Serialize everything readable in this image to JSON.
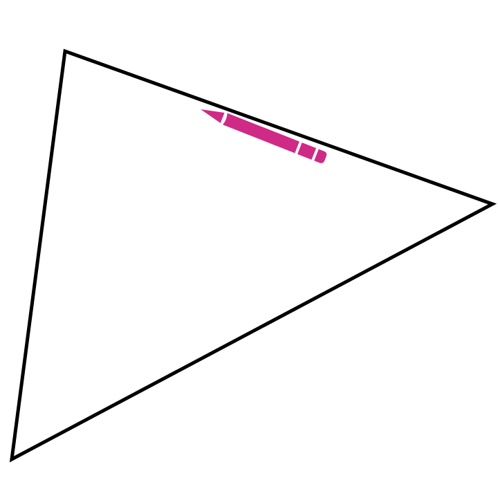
{
  "figure": {
    "shape": "triangle",
    "outline_color": "#000000",
    "background_color": "#ffffff"
  },
  "marker": {
    "icon": "pencil-icon",
    "color": "#cf2a86"
  }
}
